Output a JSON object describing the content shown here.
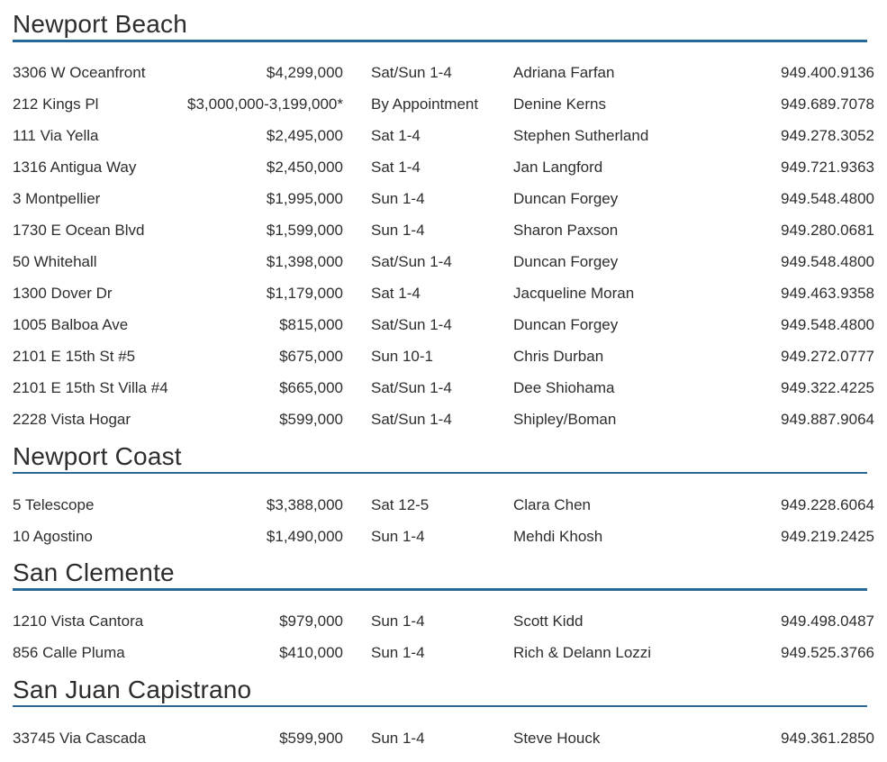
{
  "page": {
    "colors": {
      "text": "#2e2d2c",
      "rule": "#2a6996",
      "background": "#ffffff"
    }
  },
  "sections": [
    {
      "title": "Newport Beach",
      "listings": [
        {
          "address": "3306 W Oceanfront",
          "price": "$4,299,000",
          "time": "Sat/Sun 1-4",
          "agent": "Adriana Farfan",
          "phone": "949.400.9136"
        },
        {
          "address": "212 Kings Pl",
          "price": "$3,000,000-3,199,000*",
          "time": "By Appointment",
          "agent": "Denine Kerns",
          "phone": "949.689.7078"
        },
        {
          "address": "111 Via Yella",
          "price": "$2,495,000",
          "time": "Sat 1-4",
          "agent": "Stephen Sutherland",
          "phone": "949.278.3052"
        },
        {
          "address": "1316 Antigua Way",
          "price": "$2,450,000",
          "time": "Sat 1-4",
          "agent": "Jan Langford",
          "phone": "949.721.9363"
        },
        {
          "address": "3 Montpellier",
          "price": "$1,995,000",
          "time": "Sun 1-4",
          "agent": "Duncan Forgey",
          "phone": "949.548.4800"
        },
        {
          "address": "1730 E Ocean Blvd",
          "price": "$1,599,000",
          "time": "Sun 1-4",
          "agent": "Sharon Paxson",
          "phone": "949.280.0681"
        },
        {
          "address": "50 Whitehall",
          "price": "$1,398,000",
          "time": "Sat/Sun 1-4",
          "agent": "Duncan Forgey",
          "phone": "949.548.4800"
        },
        {
          "address": "1300 Dover Dr",
          "price": "$1,179,000",
          "time": "Sat 1-4",
          "agent": "Jacqueline Moran",
          "phone": "949.463.9358"
        },
        {
          "address": "1005 Balboa Ave",
          "price": "$815,000",
          "time": "Sat/Sun 1-4",
          "agent": "Duncan Forgey",
          "phone": "949.548.4800"
        },
        {
          "address": "2101 E 15th St #5",
          "price": "$675,000",
          "time": "Sun 10-1",
          "agent": "Chris Durban",
          "phone": "949.272.0777"
        },
        {
          "address": "2101 E 15th St Villa #4",
          "price": "$665,000",
          "time": "Sat/Sun 1-4",
          "agent": "Dee Shiohama",
          "phone": "949.322.4225"
        },
        {
          "address": "2228 Vista Hogar",
          "price": "$599,000",
          "time": "Sat/Sun 1-4",
          "agent": "Shipley/Boman",
          "phone": "949.887.9064"
        }
      ]
    },
    {
      "title": "Newport Coast",
      "listings": [
        {
          "address": "5 Telescope",
          "price": "$3,388,000",
          "time": "Sat 12-5",
          "agent": "Clara Chen",
          "phone": "949.228.6064"
        },
        {
          "address": "10 Agostino",
          "price": "$1,490,000",
          "time": "Sun 1-4",
          "agent": "Mehdi Khosh",
          "phone": "949.219.2425"
        }
      ]
    },
    {
      "title": "San Clemente",
      "listings": [
        {
          "address": "1210 Vista Cantora",
          "price": "$979,000",
          "time": "Sun 1-4",
          "agent": "Scott Kidd",
          "phone": "949.498.0487"
        },
        {
          "address": "856 Calle Pluma",
          "price": "$410,000",
          "time": "Sun 1-4",
          "agent": "Rich & Delann Lozzi",
          "phone": "949.525.3766"
        }
      ]
    },
    {
      "title": "San Juan Capistrano",
      "listings": [
        {
          "address": "33745 Via Cascada",
          "price": "$599,900",
          "time": "Sun 1-4",
          "agent": "Steve Houck",
          "phone": "949.361.2850"
        }
      ]
    }
  ]
}
